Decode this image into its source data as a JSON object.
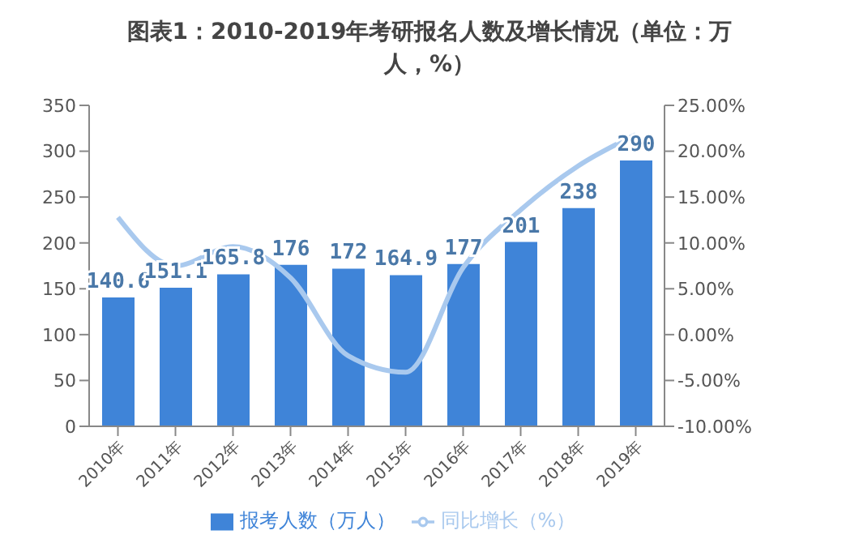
{
  "chart_data": {
    "type": "bar",
    "title": "图表1：2010-2019年考研报名人数及增长情况（单位：万人，%）",
    "categories": [
      "2010年",
      "2011年",
      "2012年",
      "2013年",
      "2014年",
      "2015年",
      "2016年",
      "2017年",
      "2018年",
      "2019年"
    ],
    "series": [
      {
        "name": "报考人数（万人）",
        "color": "#3f84d8",
        "values": [
          140.6,
          151.1,
          165.8,
          176,
          172,
          164.9,
          177,
          201,
          238,
          290
        ],
        "value_labels": [
          "140.6",
          "151.1",
          "165.8",
          "176",
          "172",
          "164.9",
          "177",
          "201",
          "238",
          "290"
        ]
      },
      {
        "name": "同比增长（%）",
        "type": "line",
        "axis": "y2",
        "color": "#a9c9ee",
        "values": [
          12.8,
          7.5,
          9.6,
          6.2,
          -2.3,
          -4.1,
          7.3,
          13.6,
          18.4,
          21.8
        ]
      }
    ],
    "ylim": [
      0,
      350
    ],
    "yticks": [
      0,
      50,
      100,
      150,
      200,
      250,
      300,
      350
    ],
    "y2lim": [
      -10,
      25
    ],
    "y2ticks": [
      {
        "value": -10,
        "label": "-10.00%"
      },
      {
        "value": -5,
        "label": "-5.00%"
      },
      {
        "value": 0,
        "label": "0.00%"
      },
      {
        "value": 5,
        "label": "5.00%"
      },
      {
        "value": 10,
        "label": "10.00%"
      },
      {
        "value": 15,
        "label": "15.00%"
      },
      {
        "value": 20,
        "label": "20.00%"
      },
      {
        "value": 25,
        "label": "25.00%"
      }
    ],
    "legend": "bottom",
    "grid": false,
    "marker": "none",
    "line_style": "solid"
  }
}
